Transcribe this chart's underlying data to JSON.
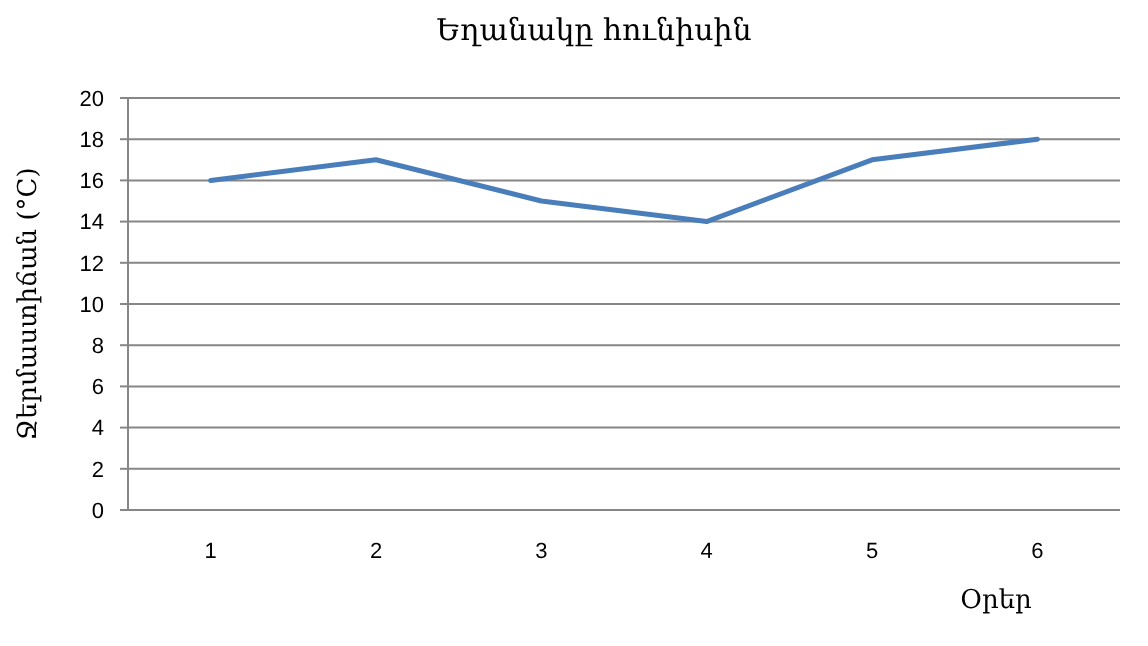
{
  "chart_data": {
    "type": "line",
    "title": "Եղանակը հունիսին",
    "xlabel": "Օրեր",
    "ylabel": "Ջերմաստիճան (°C)",
    "categories": [
      "1",
      "2",
      "3",
      "4",
      "5",
      "6"
    ],
    "series": [
      {
        "color": "#4a7ebb",
        "values": [
          16,
          17,
          15,
          14,
          17,
          18
        ]
      }
    ],
    "ylim": [
      0,
      20
    ],
    "yticks": [
      0,
      2,
      4,
      6,
      8,
      10,
      12,
      14,
      16,
      18,
      20
    ],
    "grid": "y",
    "marker": "none",
    "line_style": "solid"
  }
}
